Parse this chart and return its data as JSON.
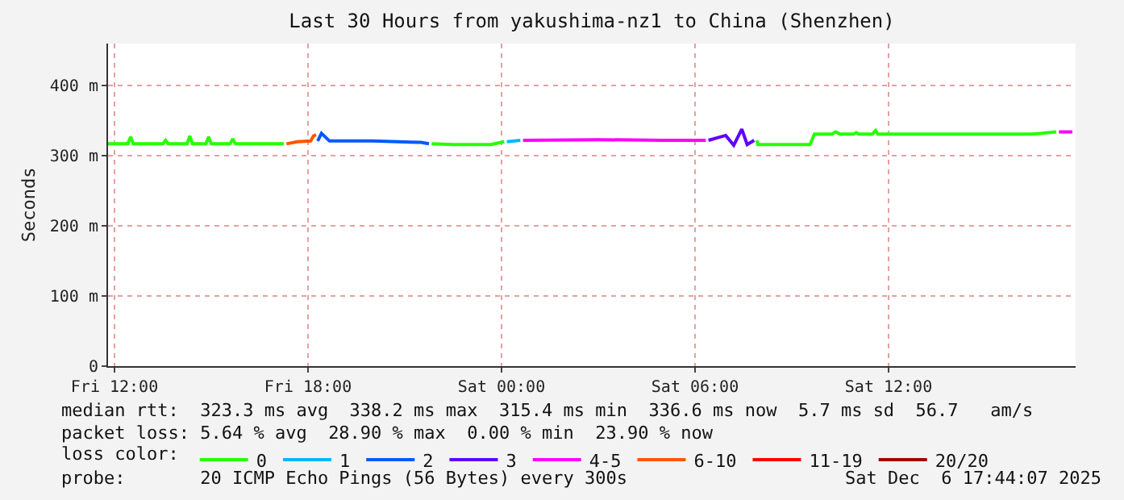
{
  "chart_data": {
    "type": "line",
    "title": "Last 30 Hours from yakushima-nz1 to China (Shenzhen)",
    "ylabel": "Seconds",
    "legend_title": "loss color:",
    "xlim": [
      "2025-12-05T11:48",
      "2025-12-06T17:48"
    ],
    "xticks": [
      {
        "value": "2025-12-05T12:00",
        "label": "Fri 12:00"
      },
      {
        "value": "2025-12-05T18:00",
        "label": "Fri 18:00"
      },
      {
        "value": "2025-12-06T00:00",
        "label": "Sat 00:00"
      },
      {
        "value": "2025-12-06T06:00",
        "label": "Sat 06:00"
      },
      {
        "value": "2025-12-06T12:00",
        "label": "Sat 12:00"
      }
    ],
    "ylim": [
      0,
      460
    ],
    "yticks": [
      0,
      {
        "value": 100,
        "label": "100 m"
      },
      {
        "value": 200,
        "label": "200 m"
      },
      {
        "value": 300,
        "label": "300 m"
      },
      {
        "value": 400,
        "label": "400 m"
      }
    ],
    "grid": true,
    "legend": "bottom",
    "marker": "none",
    "line_style": "solid",
    "series": [
      {
        "name": "0",
        "color": "#26ff00",
        "x": [
          "2025-12-05T11:48",
          "2025-12-05T12:25",
          "2025-12-05T12:30",
          "2025-12-05T12:35",
          "2025-12-05T13:30",
          "2025-12-05T13:35",
          "2025-12-05T13:40",
          "2025-12-05T14:15",
          "2025-12-05T14:20",
          "2025-12-05T14:25",
          "2025-12-05T14:50",
          "2025-12-05T14:55",
          "2025-12-05T15:00",
          "2025-12-05T15:35",
          "2025-12-05T15:40",
          "2025-12-05T15:45",
          "2025-12-05T17:15",
          "2025-12-05T19:00",
          "2025-12-05T21:50",
          "2025-12-05T22:30",
          "2025-12-05T23:40",
          "2025-12-06T00:05",
          "2025-12-06T04:00",
          "2025-12-06T07:55",
          "2025-12-06T07:57",
          "2025-12-06T09:34",
          "2025-12-06T09:42",
          "2025-12-06T10:15",
          "2025-12-06T10:21",
          "2025-12-06T10:30",
          "2025-12-06T10:55",
          "2025-12-06T11:00",
          "2025-12-06T11:05",
          "2025-12-06T11:30",
          "2025-12-06T11:36",
          "2025-12-06T11:40",
          "2025-12-06T16:26",
          "2025-12-06T16:45",
          "2025-12-06T17:12"
        ],
        "values": [
          317,
          317,
          327,
          317,
          317,
          322,
          317,
          317,
          328,
          317,
          317,
          327,
          317,
          317,
          324,
          317,
          317,
          null,
          317,
          316,
          316,
          320,
          null,
          322,
          316,
          316,
          331,
          331,
          334,
          331,
          331,
          333,
          331,
          331,
          336,
          331,
          331,
          332,
          334
        ]
      },
      {
        "name": "1",
        "color": "#00b8ff",
        "x": [
          "2025-12-06T00:10",
          "2025-12-06T00:35"
        ],
        "values": [
          320,
          322
        ]
      },
      {
        "name": "2",
        "color": "#0059ff",
        "x": [
          "2025-12-05T18:18",
          "2025-12-05T18:25",
          "2025-12-05T18:40",
          "2025-12-05T20:00",
          "2025-12-05T21:30",
          "2025-12-05T21:45"
        ],
        "values": [
          321,
          332,
          321,
          321,
          319,
          317
        ]
      },
      {
        "name": "3",
        "color": "#5e00ff",
        "x": [
          "2025-12-06T06:25",
          "2025-12-06T06:57",
          "2025-12-06T07:12",
          "2025-12-06T07:27",
          "2025-12-06T07:37",
          "2025-12-06T07:50"
        ],
        "values": [
          322,
          329,
          315,
          338,
          316,
          322
        ]
      },
      {
        "name": "4-5",
        "color": "#ff00ff",
        "x": [
          "2025-12-06T00:40",
          "2025-12-06T03:00",
          "2025-12-06T05:00",
          "2025-12-06T06:20",
          "2025-12-06T12:00",
          "2025-12-06T17:17",
          "2025-12-06T17:42"
        ],
        "values": [
          322,
          323,
          322,
          322,
          null,
          334,
          334
        ]
      },
      {
        "name": "6-10",
        "color": "#ff5500",
        "x": [
          "2025-12-05T17:20",
          "2025-12-05T17:40",
          "2025-12-05T18:05",
          "2025-12-05T18:10",
          "2025-12-05T18:15"
        ],
        "values": [
          317,
          320,
          321,
          328,
          330
        ]
      },
      {
        "name": "11-19",
        "color": "#ff0000"
      },
      {
        "name": "20/20",
        "color": "#a10000"
      }
    ],
    "annotations": [
      "median rtt:  323.3 ms avg  338.2 ms max  315.4 ms min  336.6 ms now  5.7 ms sd  56.7   am/s",
      "packet loss: 5.64 % avg  28.90 % max  0.00 % min  23.90 % now",
      "probe:       20 ICMP Echo Pings (56 Bytes) every 300s",
      "Sat Dec  6 17:44:07 2025"
    ]
  }
}
